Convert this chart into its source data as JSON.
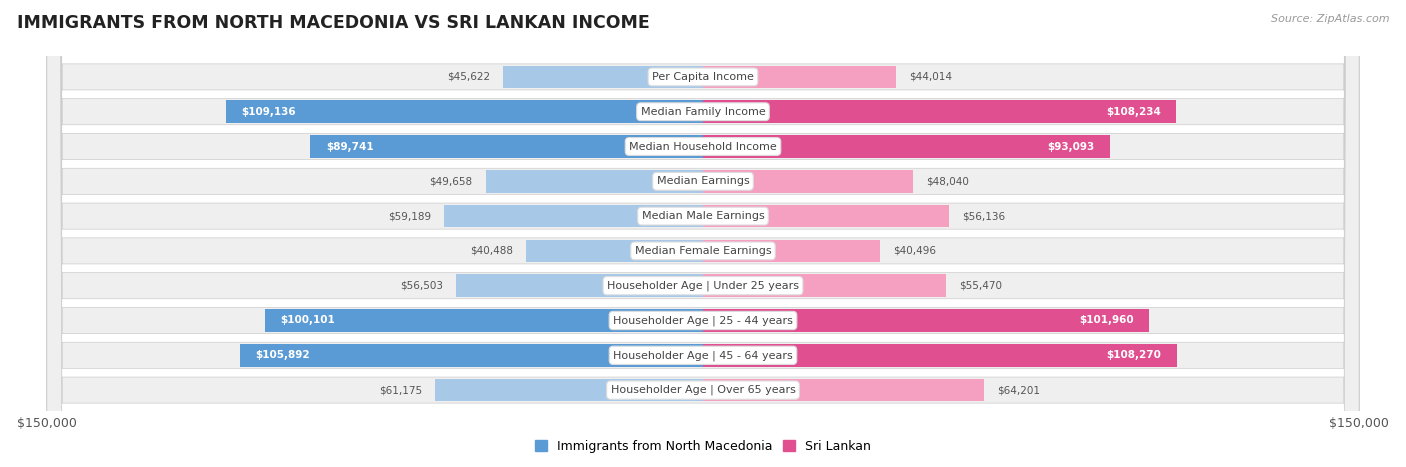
{
  "title": "IMMIGRANTS FROM NORTH MACEDONIA VS SRI LANKAN INCOME",
  "source": "Source: ZipAtlas.com",
  "categories": [
    "Per Capita Income",
    "Median Family Income",
    "Median Household Income",
    "Median Earnings",
    "Median Male Earnings",
    "Median Female Earnings",
    "Householder Age | Under 25 years",
    "Householder Age | 25 - 44 years",
    "Householder Age | 45 - 64 years",
    "Householder Age | Over 65 years"
  ],
  "north_macedonia_values": [
    45622,
    109136,
    89741,
    49658,
    59189,
    40488,
    56503,
    100101,
    105892,
    61175
  ],
  "sri_lankan_values": [
    44014,
    108234,
    93093,
    48040,
    56136,
    40496,
    55470,
    101960,
    108270,
    64201
  ],
  "nm_color_light": "#a8c8e8",
  "nm_color_dark": "#5b9bd5",
  "sl_color_light": "#f5a0c0",
  "sl_color_dark": "#e05090",
  "label_white": "#ffffff",
  "label_dark": "#555555",
  "max_value": 150000,
  "bg_color": "#ffffff",
  "row_bg": "#efefef",
  "legend_blue": "#5b9bd5",
  "legend_pink": "#e05090",
  "inside_threshold": 65000
}
